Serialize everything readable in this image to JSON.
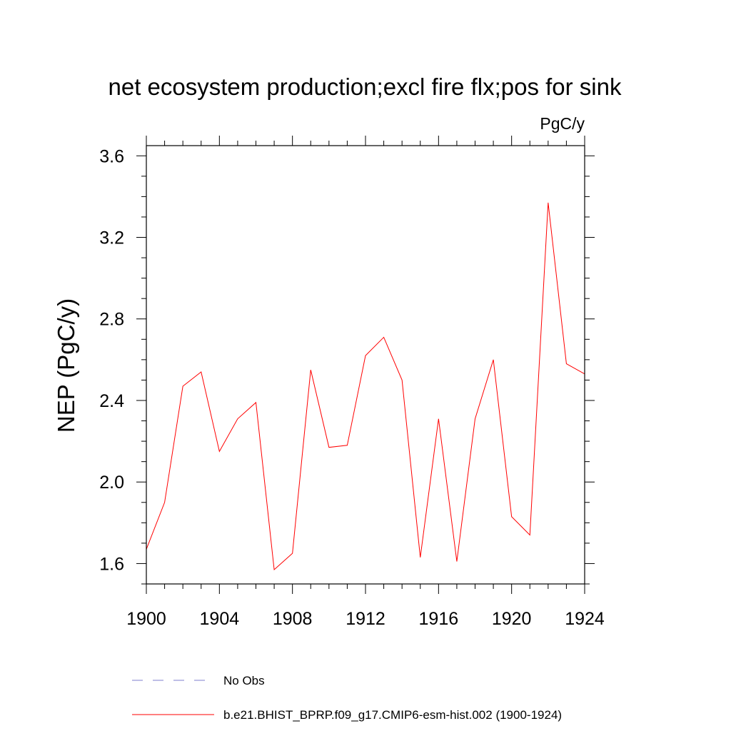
{
  "chart_data": {
    "type": "line",
    "title": "net ecosystem production;excl fire flx;pos for sink",
    "units_label": "PgC/y",
    "ylabel": "NEP  (PgC/y)",
    "xlabel": "",
    "xlim": [
      1900,
      1924
    ],
    "ylim": [
      1.5,
      3.65
    ],
    "x_ticks": [
      1900,
      1904,
      1908,
      1912,
      1916,
      1920,
      1924
    ],
    "x_tick_labels": [
      "1900",
      "1904",
      "1908",
      "1912",
      "1916",
      "1920",
      "1924"
    ],
    "y_ticks": [
      1.6,
      2.0,
      2.4,
      2.8,
      3.2,
      3.6
    ],
    "y_tick_labels": [
      "1.6",
      "2.0",
      "2.4",
      "2.8",
      "3.2",
      "3.6"
    ],
    "grid": false,
    "legend_position": "bottom",
    "series": [
      {
        "name": "No Obs",
        "color": "#7f7fcf",
        "dash": "dashed",
        "x": [],
        "values": []
      },
      {
        "name": "b.e21.BHIST_BPRP.f09_g17.CMIP6-esm-hist.002 (1900-1924)",
        "color": "#ff0000",
        "dash": "solid",
        "x": [
          1900,
          1901,
          1902,
          1903,
          1904,
          1905,
          1906,
          1907,
          1908,
          1909,
          1910,
          1911,
          1912,
          1913,
          1914,
          1915,
          1916,
          1917,
          1918,
          1919,
          1920,
          1921,
          1922,
          1923,
          1924
        ],
        "values": [
          1.67,
          1.9,
          2.47,
          2.54,
          2.15,
          2.31,
          2.39,
          1.57,
          1.65,
          2.55,
          2.17,
          2.18,
          2.62,
          2.71,
          2.5,
          1.63,
          2.31,
          1.61,
          2.31,
          2.6,
          1.83,
          1.74,
          3.37,
          2.58,
          2.53
        ]
      }
    ]
  }
}
